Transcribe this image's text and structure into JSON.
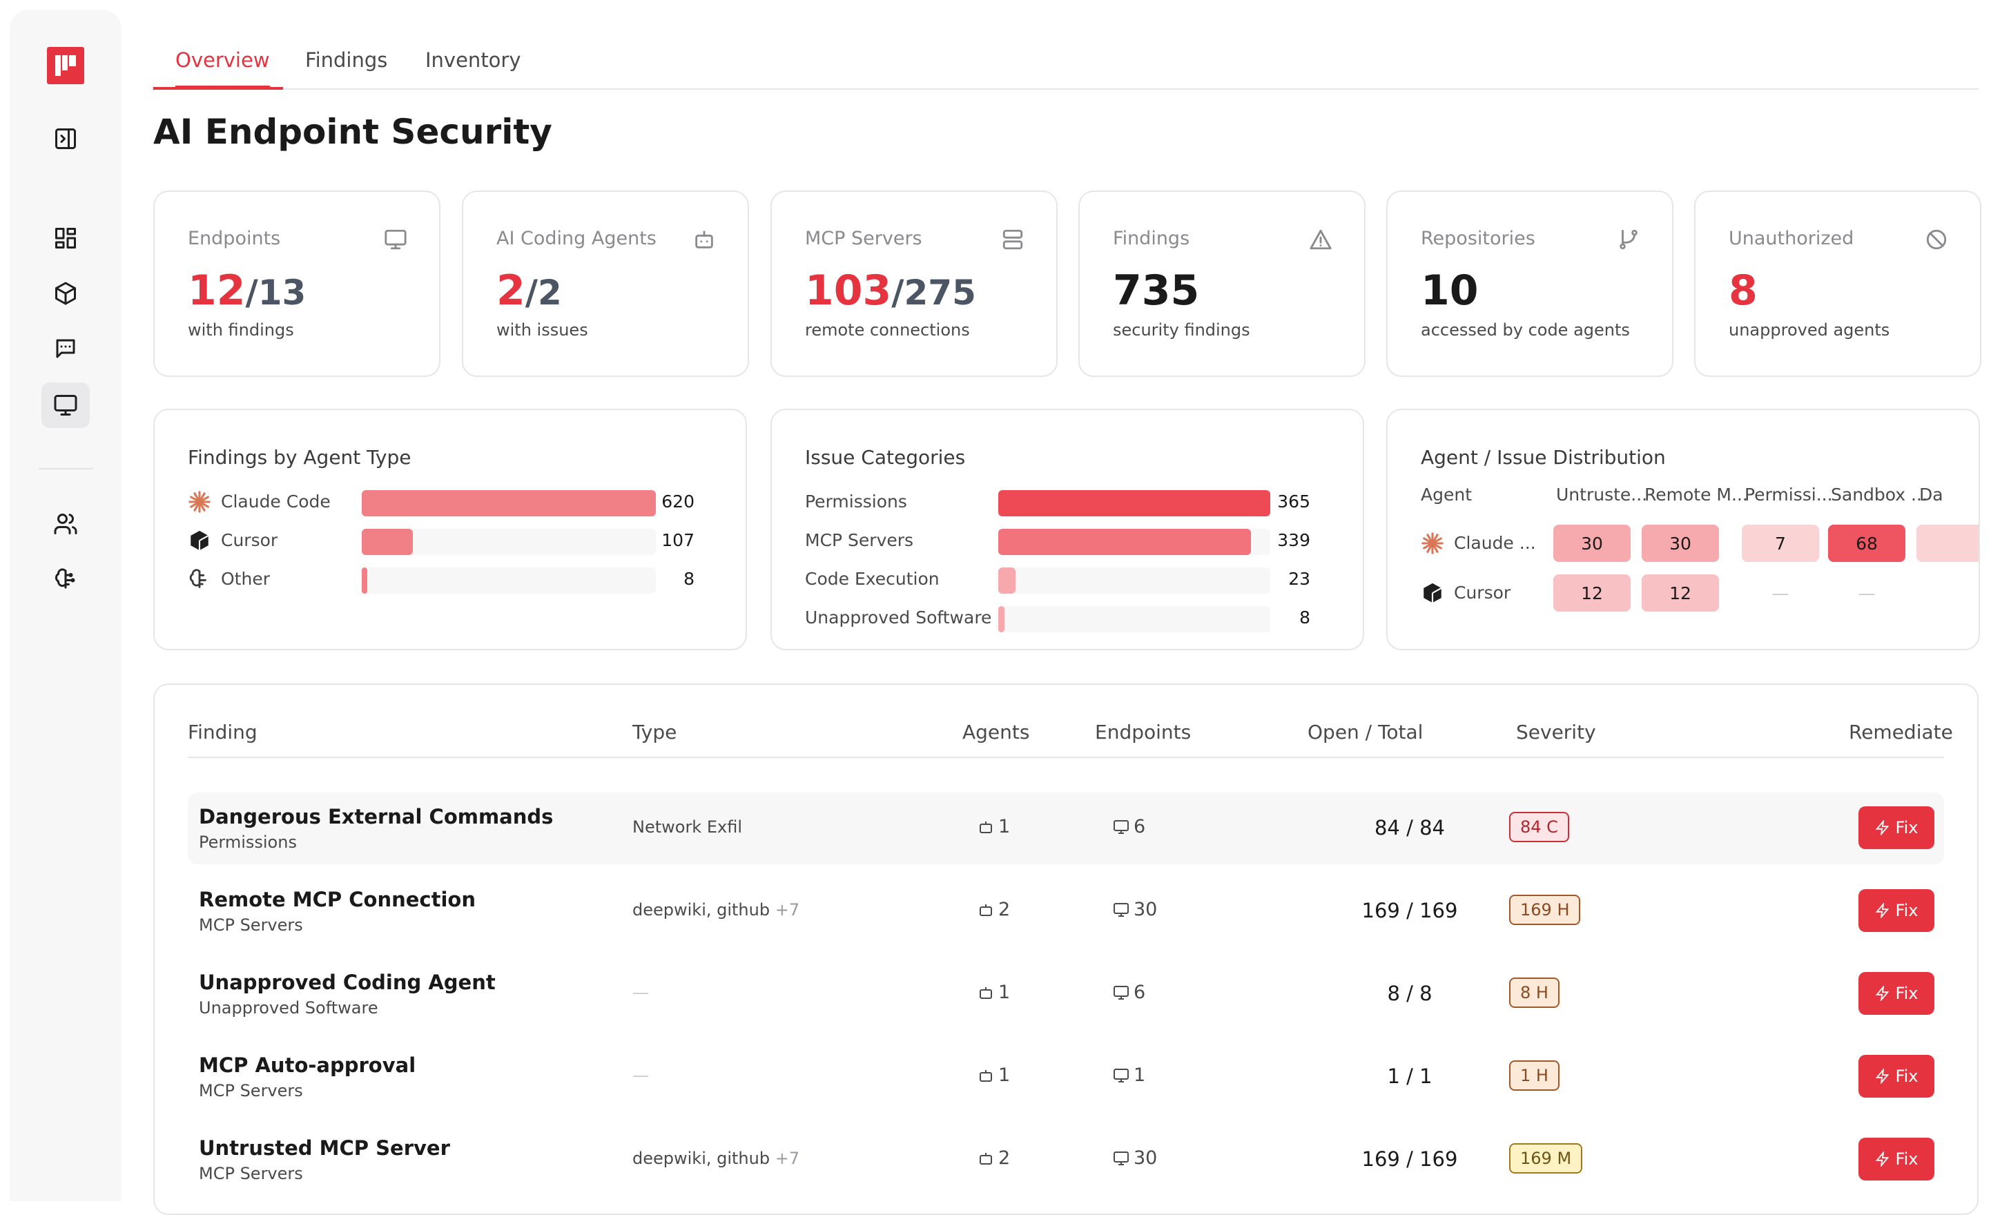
{
  "tabs": [
    {
      "label": "Overview",
      "active": true
    },
    {
      "label": "Findings",
      "active": false
    },
    {
      "label": "Inventory",
      "active": false
    }
  ],
  "page_title": "AI Endpoint Security",
  "stats": [
    {
      "label": "Endpoints",
      "value": "12",
      "total": "/13",
      "sub": "with findings",
      "icon": "monitor-icon",
      "red": true
    },
    {
      "label": "AI Coding Agents",
      "value": "2",
      "total": "/2",
      "sub": "with issues",
      "icon": "bot-icon",
      "red": true
    },
    {
      "label": "MCP Servers",
      "value": "103",
      "total": "/275",
      "sub": "remote connections",
      "icon": "server-icon",
      "red": true
    },
    {
      "label": "Findings",
      "value": "735",
      "total": "",
      "sub": "security findings",
      "icon": "warning-icon",
      "red": false
    },
    {
      "label": "Repositories",
      "value": "10",
      "total": "",
      "sub": "accessed by code agents",
      "icon": "git-branch-icon",
      "red": false
    },
    {
      "label": "Unauthorized",
      "value": "8",
      "total": "",
      "sub": "unapproved agents",
      "icon": "ban-icon",
      "red": true
    }
  ],
  "findings_by_agent": {
    "title": "Findings by Agent Type",
    "max": 620,
    "rows": [
      {
        "label": "Claude Code",
        "value": 620,
        "icon": "claude-icon"
      },
      {
        "label": "Cursor",
        "value": 107,
        "icon": "cursor-icon"
      },
      {
        "label": "Other",
        "value": 8,
        "icon": "brain-icon"
      }
    ]
  },
  "issue_categories": {
    "title": "Issue Categories",
    "max": 365,
    "rows": [
      {
        "label": "Permissions",
        "value": 365
      },
      {
        "label": "MCP Servers",
        "value": 339
      },
      {
        "label": "Code Execution",
        "value": 23
      },
      {
        "label": "Unapproved Software",
        "value": 8
      }
    ]
  },
  "distribution": {
    "title": "Agent / Issue Distribution",
    "agent_header": "Agent",
    "columns": [
      "Untruste...",
      "Remote M...",
      "Permissi...",
      "Sandbox ...",
      "Da"
    ],
    "rows": [
      {
        "agent": "Claude ...",
        "icon": "claude-icon",
        "cells": [
          "30",
          "30",
          "7",
          "68",
          ""
        ]
      },
      {
        "agent": "Cursor",
        "icon": "cursor-icon",
        "cells": [
          "12",
          "12",
          "—",
          "—",
          ""
        ]
      }
    ]
  },
  "table": {
    "headers": {
      "finding": "Finding",
      "type": "Type",
      "agents": "Agents",
      "endpoints": "Endpoints",
      "open_total": "Open / Total",
      "severity": "Severity",
      "remediate": "Remediate"
    },
    "fix_label": "Fix",
    "rows": [
      {
        "title": "Dangerous External Commands",
        "category": "Permissions",
        "type": "Network Exfil",
        "more": "",
        "agents": "1",
        "endpoints": "6",
        "ratio": "84 / 84",
        "severity": "84 C",
        "level": "critical"
      },
      {
        "title": "Remote MCP Connection",
        "category": "MCP Servers",
        "type": "deepwiki, github",
        "more": "+7",
        "agents": "2",
        "endpoints": "30",
        "ratio": "169 / 169",
        "severity": "169 H",
        "level": "high"
      },
      {
        "title": "Unapproved Coding Agent",
        "category": "Unapproved Software",
        "type": "—",
        "more": "",
        "agents": "1",
        "endpoints": "6",
        "ratio": "8 / 8",
        "severity": "8 H",
        "level": "high"
      },
      {
        "title": "MCP Auto-approval",
        "category": "MCP Servers",
        "type": "—",
        "more": "",
        "agents": "1",
        "endpoints": "1",
        "ratio": "1 / 1",
        "severity": "1 H",
        "level": "high"
      },
      {
        "title": "Untrusted MCP Server",
        "category": "MCP Servers",
        "type": "deepwiki, github",
        "more": "+7",
        "agents": "2",
        "endpoints": "30",
        "ratio": "169 / 169",
        "severity": "169 M",
        "level": "medium"
      }
    ]
  },
  "colors": {
    "accent": "#e5343f",
    "critical_bg": "#fde4e6",
    "high_bg": "#fde9d7",
    "medium_bg": "#fdf2c4"
  }
}
